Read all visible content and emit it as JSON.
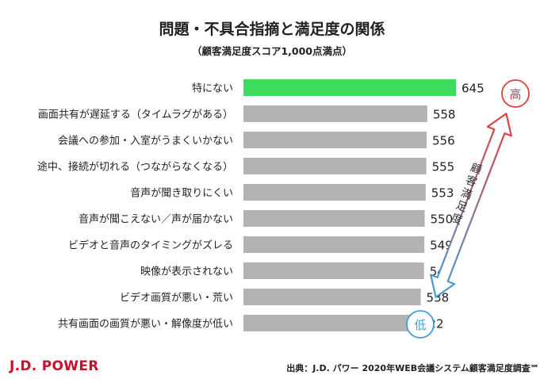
{
  "header": {
    "title": "問題・不具合指摘と満足度の関係",
    "subtitle": "（顧客満足度スコア1,000点満点）"
  },
  "footer": {
    "logo": "J.D. POWER",
    "source": "出典：J.D. パワー 2020年WEB会議システム顧客満足度調査℠"
  },
  "scale_arrow": {
    "label": "顧客満足度",
    "high": "高",
    "low": "低",
    "high_color": "#e53b3b",
    "low_color": "#3fa0d8"
  },
  "colors": {
    "highlight_bar": "#3ddc5c",
    "bar": "#b3b3b3"
  },
  "chart_data": {
    "type": "bar",
    "orientation": "horizontal",
    "title": "問題・不具合指摘と満足度の関係",
    "subtitle": "（顧客満足度スコア1,000点満点）",
    "categories": [
      "特にない",
      "画面共有が遅延する（タイムラグがある）",
      "会議への参加・入室がうまくいかない",
      "途中、接続が切れる（つながらなくなる）",
      "音声が聞き取りにくい",
      "音声が聞こえない／声が届かない",
      "ビデオと音声のタイミングがズレる",
      "映像が表示されない",
      "ビデオ画質が悪い・荒い",
      "共有画面の画質が悪い・解像度が低い"
    ],
    "values": [
      645,
      558,
      556,
      555,
      553,
      550,
      549,
      548,
      538,
      522
    ],
    "highlight_index": 0,
    "data_labels": true,
    "grid": false,
    "legend": false
  }
}
